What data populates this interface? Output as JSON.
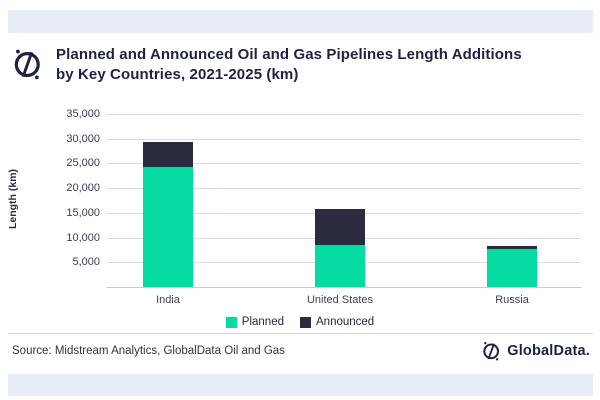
{
  "theme": {
    "band_color": "#E9EDF8",
    "planned_color": "#06DCA2",
    "announced_color": "#2B2B40",
    "title_color": "#1F2144"
  },
  "header": {
    "title_line1": "Planned and Announced Oil and Gas Pipelines Length Additions",
    "title_line2": "by Key Countries, 2021-2025 (km)"
  },
  "chart_data": {
    "type": "bar",
    "stacked": true,
    "title": "Planned and Announced Oil and Gas Pipelines Length Additions by Key Countries, 2021-2025 (km)",
    "categories": [
      "India",
      "United States",
      "Russia"
    ],
    "series": [
      {
        "name": "Planned",
        "color": "#06DCA2",
        "values": [
          24300,
          8400,
          7700
        ]
      },
      {
        "name": "Announced",
        "color": "#2B2B40",
        "values": [
          5100,
          7400,
          600
        ]
      }
    ],
    "totals": [
      29400,
      15800,
      8300
    ],
    "xlabel": "",
    "ylabel": "Length (km)",
    "ylim": [
      0,
      35000
    ],
    "ytick_step": 5000,
    "yticks": [
      {
        "value": 5000,
        "label": "5,000"
      },
      {
        "value": 10000,
        "label": "10,000"
      },
      {
        "value": 15000,
        "label": "15,000"
      },
      {
        "value": 20000,
        "label": "20,000"
      },
      {
        "value": 25000,
        "label": "25,000"
      },
      {
        "value": 30000,
        "label": "30,000"
      },
      {
        "value": 35000,
        "label": "35,000"
      }
    ],
    "grid": true,
    "legend_position": "bottom"
  },
  "footer": {
    "source": "Source: Midstream Analytics, GlobalData Oil and Gas",
    "brand": "GlobalData."
  }
}
